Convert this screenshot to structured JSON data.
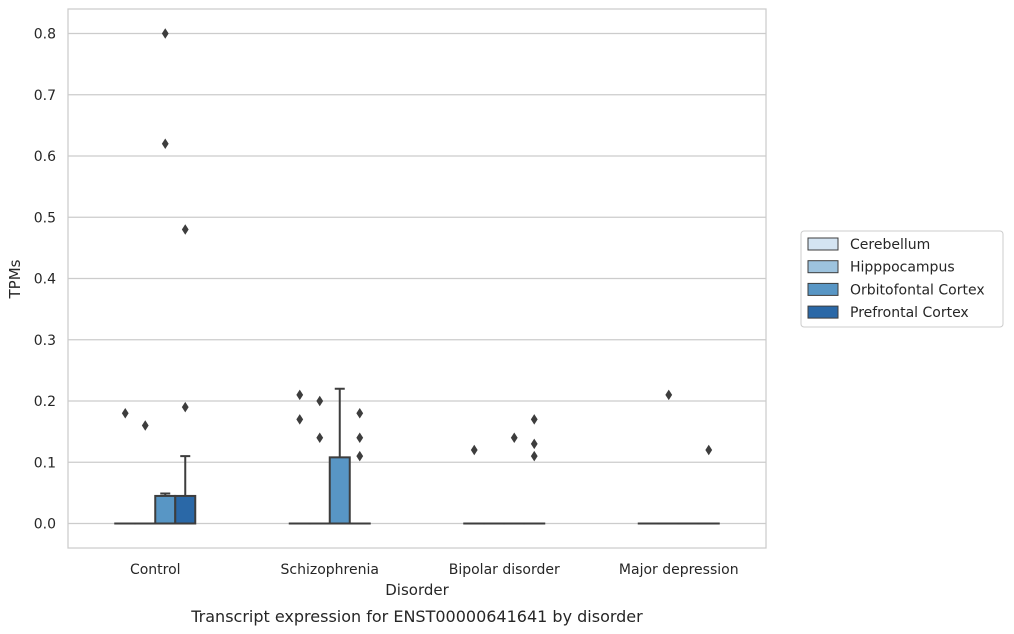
{
  "chart_data": {
    "type": "box",
    "title": "",
    "caption": "Transcript expression for ENST00000641641 by disorder",
    "xlabel": "Disorder",
    "ylabel": "TPMs",
    "ylim": [
      -0.04,
      0.84
    ],
    "yticks": [
      "0.0",
      "0.1",
      "0.2",
      "0.3",
      "0.4",
      "0.5",
      "0.6",
      "0.7",
      "0.8"
    ],
    "ytick_values": [
      0,
      0.1,
      0.2,
      0.3,
      0.4,
      0.5,
      0.6,
      0.7,
      0.8
    ],
    "grid": true,
    "legend_position": "right, outside plot",
    "categories": [
      "Control",
      "Schizophrenia",
      "Bipolar disorder",
      "Major depression"
    ],
    "series": [
      {
        "name": "Cerebellum",
        "color": "#d4e4f2",
        "boxes": [
          {
            "q1": 0,
            "median": 0,
            "q3": 0,
            "whisker_low": 0,
            "whisker_high": 0,
            "outliers": [
              0.18
            ]
          },
          {
            "q1": 0,
            "median": 0,
            "q3": 0,
            "whisker_low": 0,
            "whisker_high": 0,
            "outliers": [
              0.21,
              0.17
            ]
          },
          {
            "q1": 0,
            "median": 0,
            "q3": 0,
            "whisker_low": 0,
            "whisker_high": 0,
            "outliers": [
              0.12
            ]
          },
          {
            "q1": 0,
            "median": 0,
            "q3": 0,
            "whisker_low": 0,
            "whisker_high": 0,
            "outliers": []
          }
        ]
      },
      {
        "name": "Hipppocampus",
        "color": "#9dc3de",
        "boxes": [
          {
            "q1": 0,
            "median": 0,
            "q3": 0,
            "whisker_low": 0,
            "whisker_high": 0,
            "outliers": [
              0.16
            ]
          },
          {
            "q1": 0,
            "median": 0,
            "q3": 0,
            "whisker_low": 0,
            "whisker_high": 0,
            "outliers": [
              0.2,
              0.14
            ]
          },
          {
            "q1": 0,
            "median": 0,
            "q3": 0,
            "whisker_low": 0,
            "whisker_high": 0,
            "outliers": []
          },
          {
            "q1": 0,
            "median": 0,
            "q3": 0,
            "whisker_low": 0,
            "whisker_high": 0,
            "outliers": [
              0.21
            ]
          }
        ]
      },
      {
        "name": "Orbitofontal Cortex",
        "color": "#5896c5",
        "boxes": [
          {
            "q1": 0,
            "median": 0,
            "q3": 0.045,
            "whisker_low": 0,
            "whisker_high": 0.049,
            "outliers": [
              0.8,
              0.62
            ]
          },
          {
            "q1": 0,
            "median": 0,
            "q3": 0.108,
            "whisker_low": 0,
            "whisker_high": 0.22,
            "outliers": []
          },
          {
            "q1": 0,
            "median": 0,
            "q3": 0,
            "whisker_low": 0,
            "whisker_high": 0,
            "outliers": [
              0.14
            ]
          },
          {
            "q1": 0,
            "median": 0,
            "q3": 0,
            "whisker_low": 0,
            "whisker_high": 0,
            "outliers": []
          }
        ]
      },
      {
        "name": "Prefrontal Cortex",
        "color": "#2a68a7",
        "boxes": [
          {
            "q1": 0,
            "median": 0,
            "q3": 0.045,
            "whisker_low": 0,
            "whisker_high": 0.11,
            "outliers": [
              0.48,
              0.19
            ]
          },
          {
            "q1": 0,
            "median": 0,
            "q3": 0,
            "whisker_low": 0,
            "whisker_high": 0,
            "outliers": [
              0.18,
              0.14,
              0.11
            ]
          },
          {
            "q1": 0,
            "median": 0,
            "q3": 0,
            "whisker_low": 0,
            "whisker_high": 0,
            "outliers": [
              0.17,
              0.13,
              0.11
            ]
          },
          {
            "q1": 0,
            "median": 0,
            "q3": 0,
            "whisker_low": 0,
            "whisker_high": 0,
            "outliers": [
              0.12
            ]
          }
        ]
      }
    ]
  }
}
